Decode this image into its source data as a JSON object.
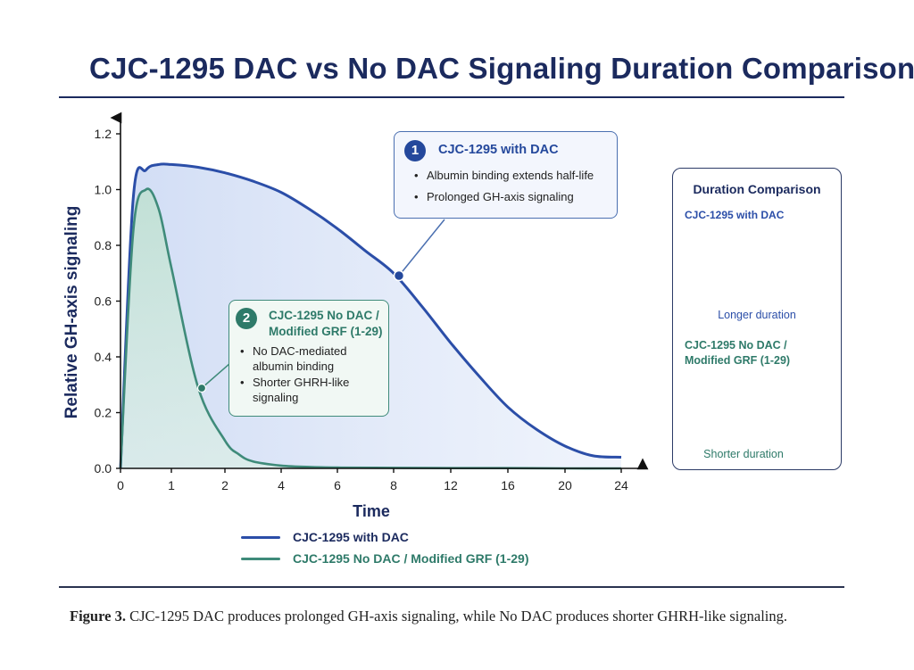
{
  "title": "CJC-1295 DAC vs No DAC Signaling Duration Comparison",
  "caption": {
    "label": "Figure 3.",
    "text": "CJC-1295 DAC produces prolonged GH-axis signaling, while No DAC produces shorter GHRH-like signaling."
  },
  "colors": {
    "dac": "#2b4ea8",
    "nodac": "#3f8b7a",
    "navy": "#1b2a5e"
  },
  "chart_data": {
    "type": "area",
    "xlabel": "Time",
    "ylabel": "Relative GH-axis signaling",
    "x_ticks": [
      "0",
      "1",
      "2",
      "4",
      "6",
      "8",
      "12",
      "16",
      "20",
      "24"
    ],
    "y_ticks": [
      "0.0",
      "0.2",
      "0.4",
      "0.6",
      "0.8",
      "1.0",
      "1.2"
    ],
    "ylim": [
      0,
      1.2
    ],
    "series": [
      {
        "name": "CJC-1295 with DAC",
        "color": "#2b4ea8",
        "x": [
          0,
          0.25,
          0.5,
          0.75,
          1,
          1.5,
          2,
          3,
          4,
          5,
          6,
          7,
          8,
          10,
          12,
          14,
          16,
          18,
          20,
          22,
          24
        ],
        "y": [
          0,
          0.97,
          1.07,
          1.09,
          1.09,
          1.08,
          1.06,
          1.03,
          0.99,
          0.93,
          0.86,
          0.78,
          0.7,
          0.58,
          0.45,
          0.33,
          0.22,
          0.14,
          0.08,
          0.045,
          0.04
        ]
      },
      {
        "name": "CJC-1295 No DAC / Modified GRF (1-29)",
        "color": "#3f8b7a",
        "x": [
          0,
          0.25,
          0.5,
          0.75,
          1,
          1.5,
          2,
          2.5,
          3,
          4,
          5,
          6,
          8,
          12,
          16,
          20,
          24
        ],
        "y": [
          0,
          0.85,
          1.0,
          0.93,
          0.72,
          0.29,
          0.1,
          0.05,
          0.025,
          0.01,
          0.005,
          0.003,
          0.002,
          0.001,
          0.001,
          0.0,
          0.0
        ]
      }
    ],
    "legend": "bottom",
    "annotations": [
      {
        "number": "1",
        "title": "CJC-1295 with DAC",
        "bullets": [
          "Albumin binding extends half-life",
          "Prolonged GH-axis signaling"
        ]
      },
      {
        "number": "2",
        "title": "CJC-1295 No DAC / Modified GRF (1-29)",
        "bullets": [
          "No DAC-mediated albumin binding",
          "Shorter GHRH-like signaling"
        ]
      }
    ],
    "inset": {
      "title": "Duration Comparison",
      "dac_label": "CJC-1295 with DAC",
      "dac_duration": "Longer duration",
      "nodac_label": "CJC-1295 No DAC / Modified GRF (1-29)",
      "nodac_duration": "Shorter duration"
    }
  }
}
